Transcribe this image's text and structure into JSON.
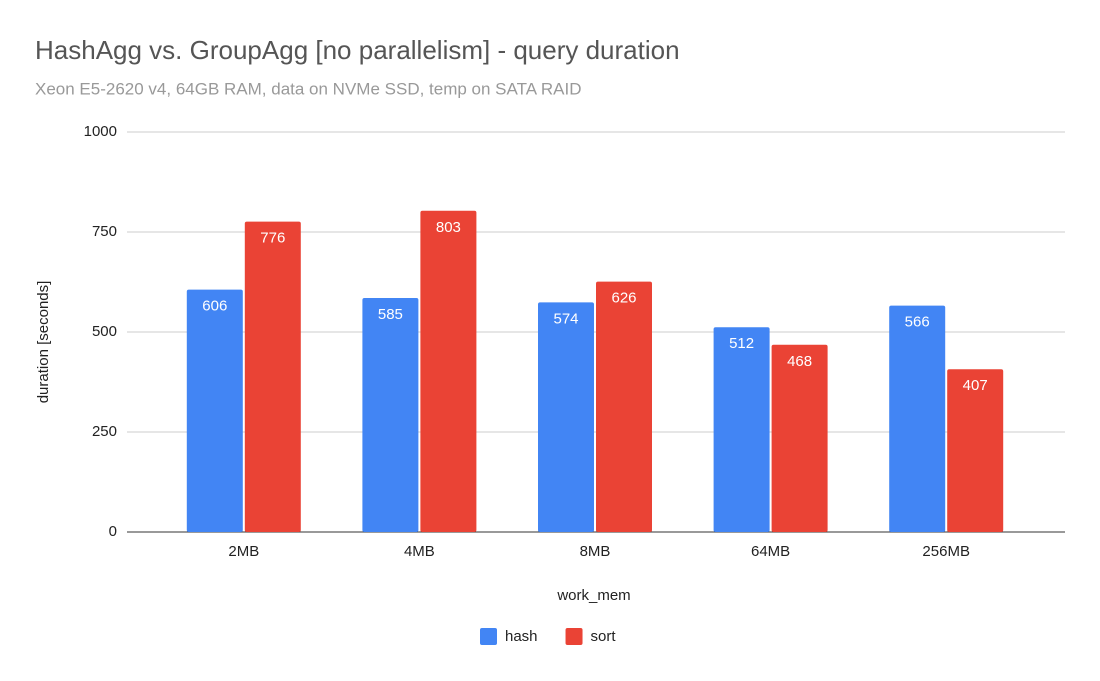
{
  "chart_data": {
    "type": "bar",
    "title": "HashAgg vs. GroupAgg [no parallelism] - query duration",
    "subtitle": "Xeon E5-2620 v4, 64GB RAM, data on NVMe SSD, temp on SATA RAID",
    "x_label": "work_mem",
    "y_label": "duration [seconds]",
    "categories": [
      "2MB",
      "4MB",
      "8MB",
      "64MB",
      "256MB"
    ],
    "series": [
      {
        "name": "hash",
        "color": "#4285f4",
        "values": [
          606,
          585,
          574,
          512,
          566
        ]
      },
      {
        "name": "sort",
        "color": "#ea4335",
        "values": [
          776,
          803,
          626,
          468,
          407
        ]
      }
    ],
    "ylim": [
      0,
      1000
    ],
    "yticks": [
      0,
      250,
      500,
      750,
      1000
    ],
    "grid": true,
    "legend": "bottom"
  }
}
